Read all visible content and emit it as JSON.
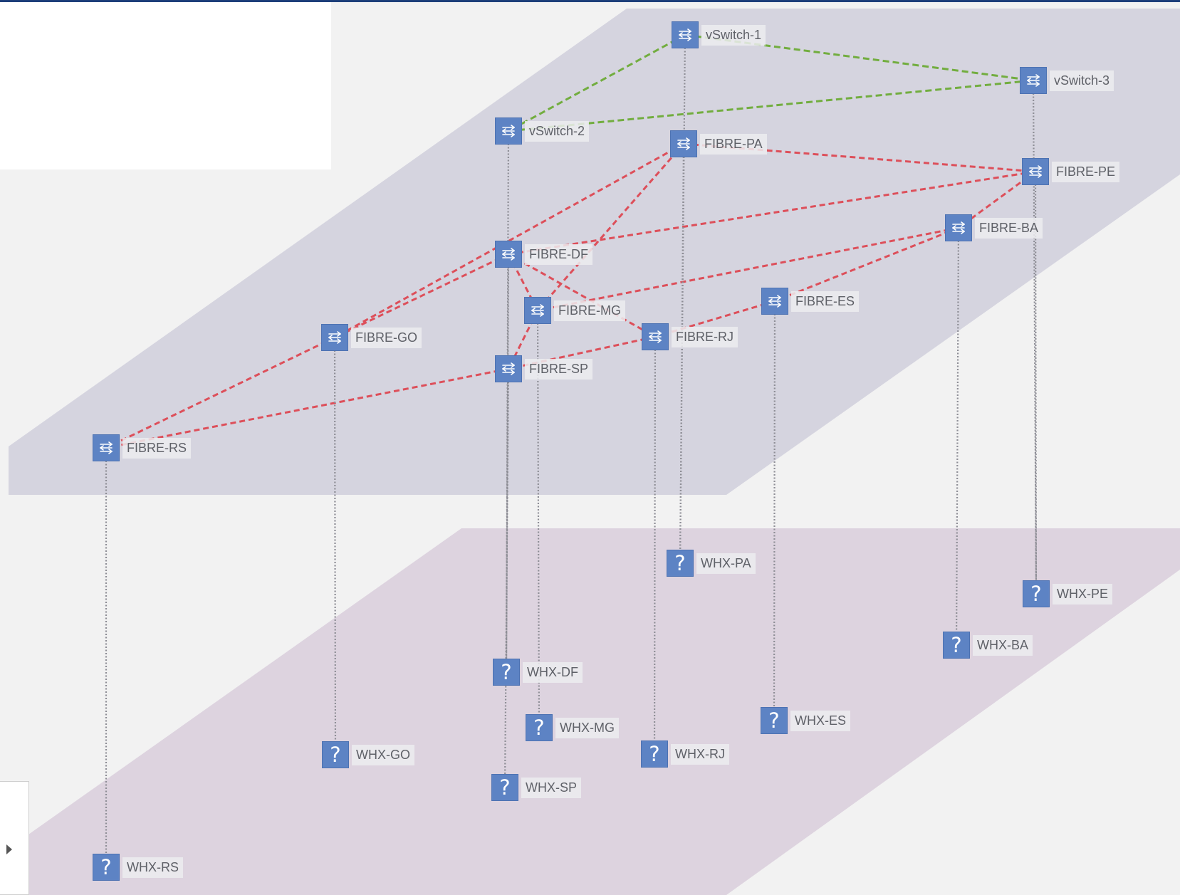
{
  "colors": {
    "page_bg": "#f2f2f2",
    "upper_layer": "#d5d4df",
    "lower_layer": "#ddd3df",
    "virtual_link": "#72ad3f",
    "fibre_link": "#dd4f5a",
    "membership_link": "#8e8e96",
    "node_icon": "#5d83c4",
    "header_bar": "#1d3f7a"
  },
  "layers": [
    {
      "id": "upper",
      "color_key": "upper_layer"
    },
    {
      "id": "lower",
      "color_key": "lower_layer"
    }
  ],
  "nodes": [
    {
      "id": "vs1",
      "label": "vSwitch-1",
      "icon": "network-switch-icon",
      "layer": "upper"
    },
    {
      "id": "vs2",
      "label": "vSwitch-2",
      "icon": "network-switch-icon",
      "layer": "upper"
    },
    {
      "id": "vs3",
      "label": "vSwitch-3",
      "icon": "network-switch-icon",
      "layer": "upper"
    },
    {
      "id": "pa",
      "label": "FIBRE-PA",
      "icon": "network-switch-icon",
      "layer": "upper"
    },
    {
      "id": "pe",
      "label": "FIBRE-PE",
      "icon": "network-switch-icon",
      "layer": "upper"
    },
    {
      "id": "ba",
      "label": "FIBRE-BA",
      "icon": "network-switch-icon",
      "layer": "upper"
    },
    {
      "id": "df",
      "label": "FIBRE-DF",
      "icon": "network-switch-icon",
      "layer": "upper"
    },
    {
      "id": "mg",
      "label": "FIBRE-MG",
      "icon": "network-switch-icon",
      "layer": "upper"
    },
    {
      "id": "es",
      "label": "FIBRE-ES",
      "icon": "network-switch-icon",
      "layer": "upper"
    },
    {
      "id": "go",
      "label": "FIBRE-GO",
      "icon": "network-switch-icon",
      "layer": "upper"
    },
    {
      "id": "rj",
      "label": "FIBRE-RJ",
      "icon": "network-switch-icon",
      "layer": "upper"
    },
    {
      "id": "sp",
      "label": "FIBRE-SP",
      "icon": "network-switch-icon",
      "layer": "upper"
    },
    {
      "id": "rs",
      "label": "FIBRE-RS",
      "icon": "network-switch-icon",
      "layer": "upper"
    },
    {
      "id": "wpa",
      "label": "WHX-PA",
      "icon": "unknown-device-icon",
      "glyph": "?",
      "layer": "lower"
    },
    {
      "id": "wpe",
      "label": "WHX-PE",
      "icon": "unknown-device-icon",
      "glyph": "?",
      "layer": "lower"
    },
    {
      "id": "wba",
      "label": "WHX-BA",
      "icon": "unknown-device-icon",
      "glyph": "?",
      "layer": "lower"
    },
    {
      "id": "wdf",
      "label": "WHX-DF",
      "icon": "unknown-device-icon",
      "glyph": "?",
      "layer": "lower"
    },
    {
      "id": "wes",
      "label": "WHX-ES",
      "icon": "unknown-device-icon",
      "glyph": "?",
      "layer": "lower"
    },
    {
      "id": "wmg",
      "label": "WHX-MG",
      "icon": "unknown-device-icon",
      "glyph": "?",
      "layer": "lower"
    },
    {
      "id": "wgo",
      "label": "WHX-GO",
      "icon": "unknown-device-icon",
      "glyph": "?",
      "layer": "lower"
    },
    {
      "id": "wrj",
      "label": "WHX-RJ",
      "icon": "unknown-device-icon",
      "glyph": "?",
      "layer": "lower"
    },
    {
      "id": "wsp",
      "label": "WHX-SP",
      "icon": "unknown-device-icon",
      "glyph": "?",
      "layer": "lower"
    },
    {
      "id": "wrs",
      "label": "WHX-RS",
      "icon": "unknown-device-icon",
      "glyph": "?",
      "layer": "lower"
    }
  ],
  "links": [
    {
      "from": "vs1",
      "to": "vs2",
      "type": "virtual"
    },
    {
      "from": "vs1",
      "to": "vs3",
      "type": "virtual"
    },
    {
      "from": "vs2",
      "to": "vs3",
      "type": "virtual"
    },
    {
      "from": "pa",
      "to": "pe",
      "type": "fibre"
    },
    {
      "from": "pa",
      "to": "go",
      "type": "fibre"
    },
    {
      "from": "pa",
      "to": "mg",
      "type": "fibre"
    },
    {
      "from": "pe",
      "to": "ba",
      "type": "fibre"
    },
    {
      "from": "pe",
      "to": "df",
      "type": "fibre"
    },
    {
      "from": "ba",
      "to": "mg",
      "type": "fibre"
    },
    {
      "from": "ba",
      "to": "es",
      "type": "fibre"
    },
    {
      "from": "df",
      "to": "go",
      "type": "fibre"
    },
    {
      "from": "df",
      "to": "mg",
      "type": "fibre"
    },
    {
      "from": "df",
      "to": "rj",
      "type": "fibre"
    },
    {
      "from": "es",
      "to": "rj",
      "type": "fibre"
    },
    {
      "from": "mg",
      "to": "sp",
      "type": "fibre"
    },
    {
      "from": "go",
      "to": "rs",
      "type": "fibre"
    },
    {
      "from": "sp",
      "to": "rs",
      "type": "fibre"
    },
    {
      "from": "rj",
      "to": "sp",
      "type": "fibre"
    },
    {
      "from": "pa",
      "to": "wpa",
      "type": "membership"
    },
    {
      "from": "vs1",
      "to": "wpa",
      "type": "membership"
    },
    {
      "from": "pe",
      "to": "wpe",
      "type": "membership"
    },
    {
      "from": "vs3",
      "to": "wpe",
      "type": "membership"
    },
    {
      "from": "ba",
      "to": "wba",
      "type": "membership"
    },
    {
      "from": "df",
      "to": "wdf",
      "type": "membership"
    },
    {
      "from": "vs2",
      "to": "wdf",
      "type": "membership"
    },
    {
      "from": "es",
      "to": "wes",
      "type": "membership"
    },
    {
      "from": "mg",
      "to": "wmg",
      "type": "membership"
    },
    {
      "from": "go",
      "to": "wgo",
      "type": "membership"
    },
    {
      "from": "rj",
      "to": "wrj",
      "type": "membership"
    },
    {
      "from": "sp",
      "to": "wsp",
      "type": "membership"
    },
    {
      "from": "rs",
      "to": "wrs",
      "type": "membership"
    }
  ]
}
